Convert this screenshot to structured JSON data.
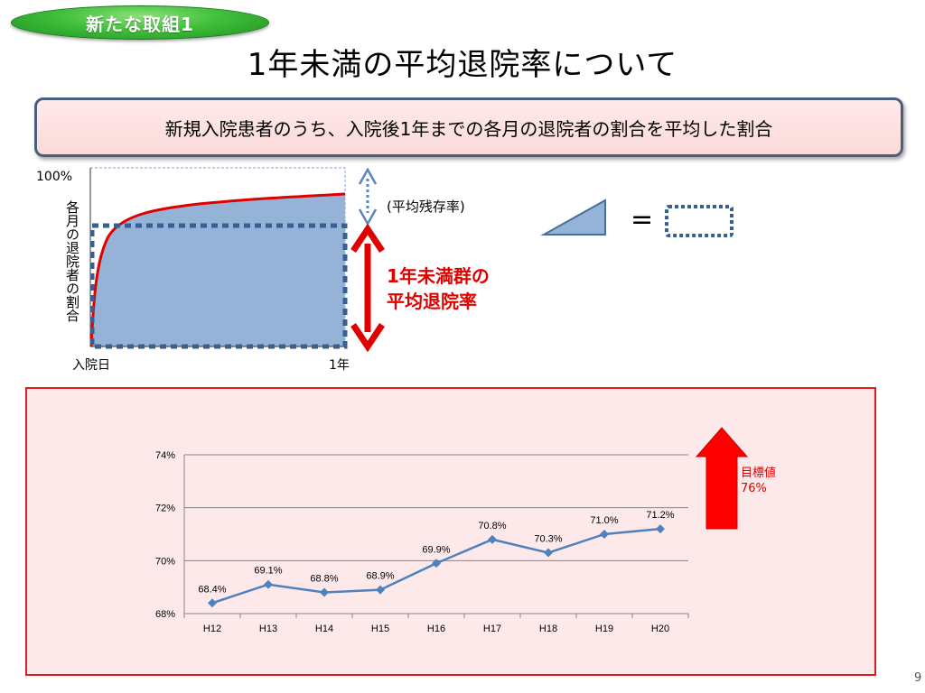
{
  "badge": "新たな取組1",
  "title": "1年未満の平均退院率について",
  "subtitle": "新規入院患者のうち、入院後1年までの各月の退院者の割合を平均した割合",
  "concept": {
    "y_top_label": "100%",
    "y_axis_label": "各月の退院者の割合",
    "x_start_label": "入院日",
    "x_end_label": "1年",
    "residual_label": "(平均残存率)",
    "red_label_line1": "1年未満群の",
    "red_label_line2": "平均退院率",
    "equals": "=",
    "colors": {
      "area": "#95b3d7",
      "curve": "#e00000",
      "dotted": "#376092",
      "arrow": "#e00000"
    }
  },
  "chart_data": {
    "type": "line",
    "categories": [
      "H12",
      "H13",
      "H14",
      "H15",
      "H16",
      "H17",
      "H18",
      "H19",
      "H20"
    ],
    "series": [
      {
        "values": [
          68.4,
          69.1,
          68.8,
          68.9,
          69.9,
          70.8,
          70.3,
          71.0,
          71.2
        ],
        "color": "#4f81bd"
      }
    ],
    "data_labels": [
      "68.4%",
      "69.1%",
      "68.8%",
      "68.9%",
      "69.9%",
      "70.8%",
      "70.3%",
      "71.0%",
      "71.2%"
    ],
    "ylim": [
      68,
      74
    ],
    "yticks": [
      68,
      70,
      72,
      74
    ],
    "ytick_labels": [
      "68%",
      "70%",
      "72%",
      "74%"
    ],
    "grid": true
  },
  "target": {
    "line1": "目標値",
    "line2": "76%",
    "color": "#ff0000"
  },
  "page_number": "9"
}
